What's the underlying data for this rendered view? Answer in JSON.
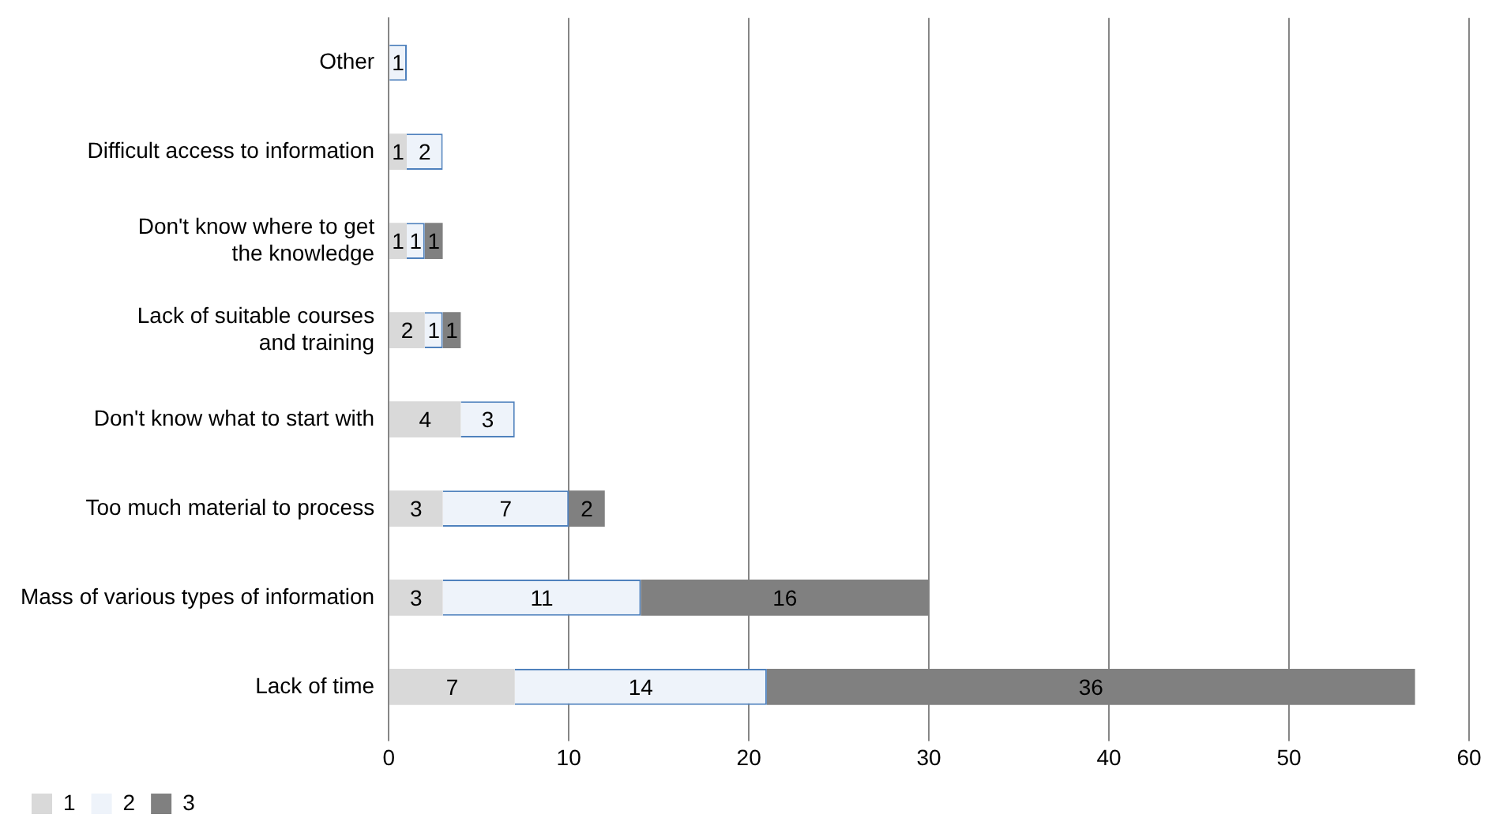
{
  "chart_data": {
    "type": "bar",
    "orientation": "horizontal",
    "stacked": true,
    "categories": [
      "Other",
      "Difficult access to information",
      "Don't know where to get the knowledge",
      "Lack of suitable courses and training",
      "Don't know what to start with",
      "Too much material to process",
      "Mass of various types of information",
      "Lack of time"
    ],
    "series": [
      {
        "name": "1",
        "color": "#d9d9d9",
        "values": [
          null,
          1,
          1,
          2,
          4,
          3,
          3,
          7
        ]
      },
      {
        "name": "2",
        "color": "#eef3fa",
        "values": [
          1,
          2,
          1,
          1,
          3,
          7,
          11,
          14
        ]
      },
      {
        "name": "3",
        "color": "#808080",
        "values": [
          null,
          null,
          1,
          1,
          null,
          2,
          16,
          36
        ]
      }
    ],
    "xlim": [
      0,
      60
    ],
    "xticks": [
      0,
      10,
      20,
      30,
      40,
      50,
      60
    ],
    "grid": "x",
    "legend": "bottom left",
    "data_labels": true
  }
}
